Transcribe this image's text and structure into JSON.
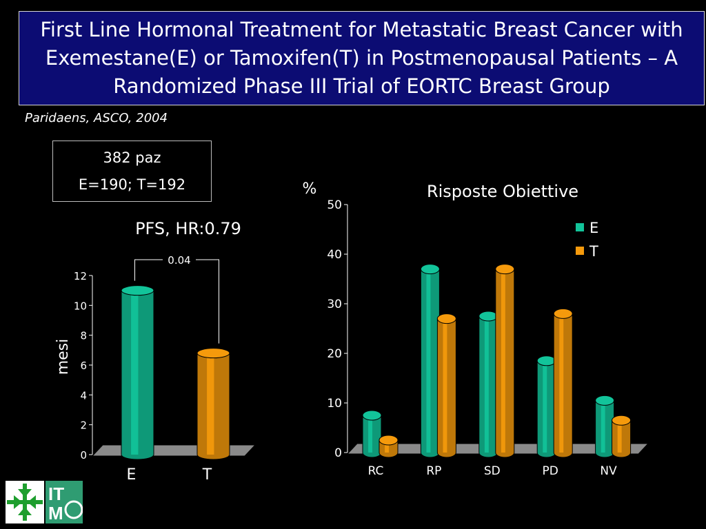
{
  "title_lines": [
    "First Line Hormonal Treatment for Metastatic Breast Cancer with",
    "Exemestane(E) or Tamoxifen(T) in Postmenopausal Patients – A",
    "Randomized Phase III Trial of EORTC Breast Group"
  ],
  "citation": "Paridaens, ASCO, 2004",
  "info_box": {
    "line1": "382 paz",
    "line2": "E=190; T=192"
  },
  "colors": {
    "E": "#12c49a",
    "T": "#f59a0c",
    "title_bg": "#0c0c73",
    "floor": "#8a8a8a"
  },
  "logo": {
    "text_top": "IT",
    "text_bottom": "M"
  },
  "chart_data": [
    {
      "type": "bar",
      "title": "PFS, HR:0.79",
      "ylabel": "mesi",
      "categories": [
        "E",
        "T"
      ],
      "values": [
        11,
        6.8
      ],
      "ylim": [
        0,
        12
      ],
      "yticks": [
        0,
        2,
        4,
        6,
        8,
        10,
        12
      ],
      "annotation": "0.04",
      "legend": "none"
    },
    {
      "type": "bar",
      "title": "Risposte Obiettive",
      "ylabel": "%",
      "categories": [
        "RC",
        "RP",
        "SD",
        "PD",
        "NV"
      ],
      "series": [
        {
          "name": "E",
          "values": [
            7.5,
            37,
            27.5,
            18.5,
            10.5
          ]
        },
        {
          "name": "T",
          "values": [
            2.5,
            27,
            37,
            28,
            6.5
          ]
        }
      ],
      "ylim": [
        0,
        50
      ],
      "yticks": [
        0,
        10,
        20,
        30,
        40,
        50
      ],
      "legend": "top-right"
    }
  ]
}
